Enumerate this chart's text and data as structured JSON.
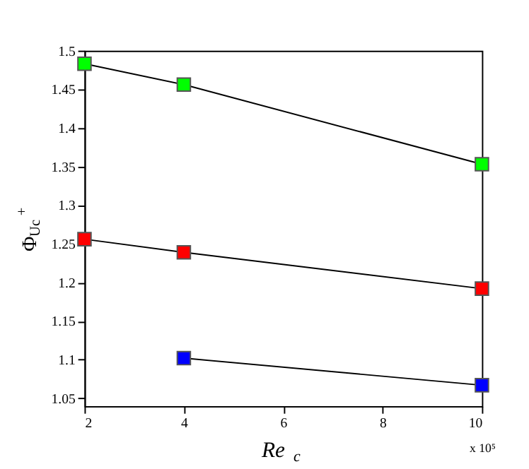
{
  "chart_data": {
    "type": "line",
    "xlabel": "Re$_{c}$",
    "ylabel": "Φ$_{U}$$_{c}$$^{+}$",
    "annotations": [
      "x 10⁵"
    ],
    "xlim": [
      2,
      10
    ],
    "ylim": [
      1.04,
      1.5
    ],
    "xticks": [
      2,
      4,
      6,
      8,
      10
    ],
    "yticks": [
      1.05,
      1.1,
      1.15,
      1.2,
      1.25,
      1.3,
      1.35,
      1.4,
      1.45,
      1.5
    ],
    "grid": false,
    "series": [
      {
        "color": "#000000",
        "marker": "none",
        "x": [
          2,
          4,
          10
        ],
        "values": [
          1.483,
          1.456,
          1.353
        ]
      },
      {
        "color": "#000000",
        "marker": "none",
        "x": [
          2,
          4,
          10
        ],
        "values": [
          1.256,
          1.239,
          1.192
        ]
      },
      {
        "color": "#000000",
        "marker": "none",
        "x": [
          4,
          10
        ],
        "values": [
          1.102,
          1.067
        ]
      },
      {
        "type": "scatter",
        "color": "#00ff00",
        "marker": "square",
        "x": [
          2,
          4,
          10
        ],
        "values": [
          1.483,
          1.456,
          1.353
        ]
      },
      {
        "type": "scatter",
        "color": "#ff0000",
        "marker": "square",
        "x": [
          2,
          4,
          10
        ],
        "values": [
          1.256,
          1.239,
          1.192
        ]
      },
      {
        "type": "scatter",
        "color": "#0000ff",
        "marker": "square",
        "x": [
          4,
          10
        ],
        "values": [
          1.102,
          1.067
        ]
      }
    ]
  }
}
